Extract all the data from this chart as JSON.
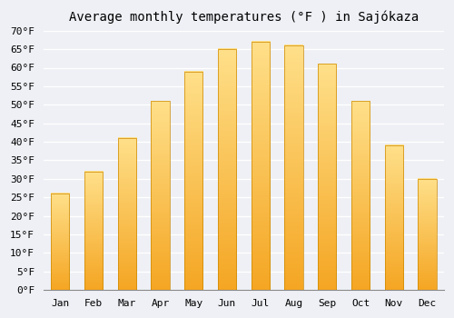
{
  "title": "Average monthly temperatures (°F ) in Sajókaza",
  "months": [
    "Jan",
    "Feb",
    "Mar",
    "Apr",
    "May",
    "Jun",
    "Jul",
    "Aug",
    "Sep",
    "Oct",
    "Nov",
    "Dec"
  ],
  "values": [
    26,
    32,
    41,
    51,
    59,
    65,
    67,
    66,
    61,
    51,
    39,
    30
  ],
  "bar_color_bottom": "#F5A623",
  "bar_color_top": "#FFE08A",
  "ylim": [
    0,
    70
  ],
  "ytick_step": 5,
  "background_color": "#EEF0F5",
  "plot_bg_color": "#EEF0F5",
  "grid_color": "#ffffff",
  "title_fontsize": 10,
  "tick_fontsize": 8,
  "bar_width": 0.55
}
